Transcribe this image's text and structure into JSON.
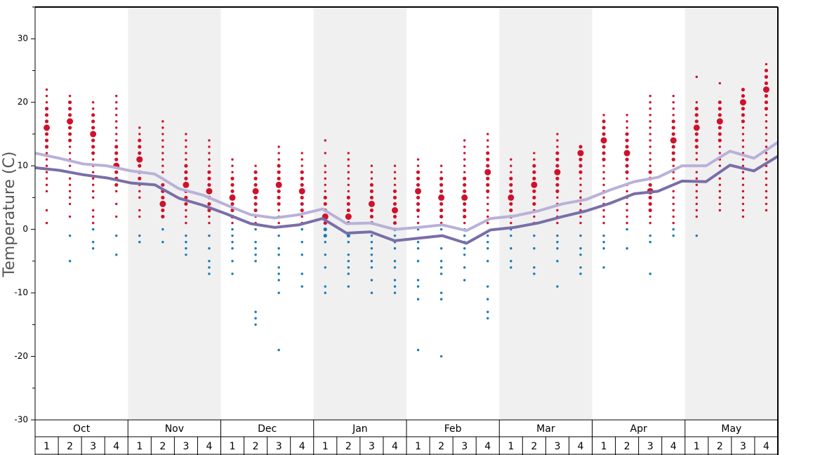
{
  "chart_data": {
    "type": "dot-distribution",
    "y_label": "Temperature (C)",
    "ylim": [
      -30,
      35
    ],
    "yticks": [
      -30,
      -20,
      -10,
      0,
      10,
      20,
      30
    ],
    "yminorticks": [
      -25,
      -15,
      -5,
      5,
      15,
      25,
      35
    ],
    "months": [
      "Oct",
      "Nov",
      "Dec",
      "Jan",
      "Feb",
      "Mar",
      "Apr",
      "May"
    ],
    "weeks": [
      1,
      2,
      3,
      4
    ],
    "shade_color": "#f0f0f0",
    "warm_color": "#d0112b",
    "cold_color": "#1479b8",
    "lines": [
      {
        "color": "#b9b1d8",
        "values": [
          12.0,
          11.2,
          10.3,
          10.0,
          9.2,
          8.7,
          6.4,
          5.4,
          3.8,
          2.3,
          1.8,
          2.3,
          3.2,
          0.9,
          1.0,
          0.0,
          0.3,
          0.7,
          -0.2,
          1.7,
          2.1,
          2.9,
          4.0,
          4.7,
          6.2,
          7.5,
          8.2,
          10.0,
          10.0,
          12.3,
          11.2,
          13.7
        ]
      },
      {
        "color": "#7a6ea8",
        "values": [
          9.7,
          9.3,
          8.6,
          8.1,
          7.3,
          7.0,
          4.9,
          3.8,
          2.4,
          0.9,
          0.3,
          0.7,
          1.7,
          -0.6,
          -0.4,
          -1.8,
          -1.4,
          -1.0,
          -2.2,
          -0.1,
          0.3,
          1.0,
          2.0,
          2.9,
          4.1,
          5.6,
          6.0,
          7.6,
          7.5,
          10.1,
          9.2,
          11.5
        ]
      }
    ],
    "peak": [
      16,
      17,
      15,
      10,
      11,
      4,
      7,
      6,
      5,
      6,
      7,
      6,
      2,
      2,
      4,
      3,
      6,
      5,
      5,
      9,
      5,
      7,
      9,
      12,
      14,
      12,
      6,
      14,
      16,
      17,
      20,
      22
    ],
    "warm": [
      [
        1,
        3,
        6,
        7,
        8,
        9,
        10,
        11,
        12,
        13,
        14,
        15,
        17,
        18,
        19,
        20,
        21,
        22
      ],
      [
        2,
        4,
        5,
        6,
        7,
        8,
        9,
        10,
        11,
        12,
        13,
        14,
        15,
        16,
        18,
        19,
        20,
        21
      ],
      [
        1,
        2,
        3,
        5,
        6,
        7,
        8,
        9,
        10,
        11,
        12,
        13,
        14,
        16,
        17,
        18,
        19,
        20
      ],
      [
        2,
        4,
        6,
        7,
        8,
        9,
        11,
        12,
        13,
        14,
        15,
        16,
        17,
        18,
        19,
        20,
        21
      ],
      [
        2,
        3,
        5,
        6,
        7,
        8,
        9,
        10,
        12,
        13,
        14,
        15,
        16
      ],
      [
        2,
        3,
        5,
        6,
        7,
        8,
        9,
        10,
        11,
        12,
        13,
        14,
        15,
        16,
        17
      ],
      [
        1,
        2,
        3,
        4,
        5,
        6,
        8,
        9,
        10,
        11,
        12,
        13,
        14,
        15
      ],
      [
        1,
        2,
        3,
        4,
        5,
        7,
        8,
        9,
        10,
        11,
        12,
        13,
        14
      ],
      [
        1,
        2,
        3,
        4,
        6,
        7,
        8,
        9,
        10,
        11
      ],
      [
        1,
        2,
        3,
        4,
        5,
        7,
        8,
        9,
        10
      ],
      [
        1,
        2,
        3,
        4,
        5,
        6,
        8,
        9,
        10,
        11,
        12,
        13
      ],
      [
        1,
        2,
        3,
        4,
        5,
        7,
        8,
        9,
        10,
        11,
        12
      ],
      [
        1,
        3,
        4,
        5,
        6,
        7,
        8,
        9,
        10,
        12,
        14
      ],
      [
        1,
        3,
        4,
        5,
        6,
        7,
        8,
        9,
        10,
        11,
        12
      ],
      [
        1,
        2,
        3,
        5,
        6,
        7,
        8,
        9,
        10
      ],
      [
        1,
        2,
        4,
        5,
        6,
        7,
        8,
        9,
        10
      ],
      [
        1,
        2,
        3,
        4,
        5,
        7,
        8,
        9,
        10,
        11
      ],
      [
        1,
        2,
        3,
        4,
        6,
        7,
        8,
        9,
        10
      ],
      [
        1,
        2,
        3,
        4,
        6,
        7,
        8,
        9,
        10,
        11,
        12,
        13,
        14
      ],
      [
        1,
        2,
        3,
        4,
        5,
        6,
        7,
        8,
        10,
        11,
        12,
        13,
        14,
        15
      ],
      [
        1,
        2,
        3,
        4,
        6,
        7,
        8,
        9,
        10,
        11
      ],
      [
        1,
        2,
        3,
        4,
        5,
        6,
        8,
        9,
        10,
        11,
        12
      ],
      [
        1,
        2,
        3,
        4,
        5,
        6,
        7,
        8,
        10,
        11,
        12,
        13,
        14,
        15
      ],
      [
        1,
        2,
        3,
        4,
        5,
        6,
        7,
        8,
        9,
        10,
        11,
        13
      ],
      [
        1,
        2,
        3,
        4,
        5,
        6,
        7,
        8,
        9,
        10,
        11,
        12,
        13,
        15,
        16,
        17,
        18
      ],
      [
        1,
        2,
        3,
        4,
        5,
        6,
        7,
        8,
        9,
        10,
        11,
        13,
        14,
        15,
        16,
        17,
        18
      ],
      [
        1,
        2,
        3,
        4,
        5,
        7,
        8,
        9,
        10,
        11,
        12,
        13,
        14,
        15,
        16,
        17,
        18,
        19,
        20,
        21
      ],
      [
        1,
        2,
        3,
        4,
        5,
        6,
        7,
        8,
        9,
        10,
        11,
        12,
        13,
        15,
        16,
        17,
        18,
        19,
        20,
        21
      ],
      [
        2,
        3,
        4,
        5,
        6,
        7,
        8,
        9,
        10,
        11,
        12,
        13,
        14,
        15,
        17,
        18,
        19,
        20,
        24
      ],
      [
        3,
        4,
        5,
        6,
        7,
        8,
        9,
        10,
        11,
        12,
        13,
        14,
        15,
        16,
        18,
        19,
        20,
        23
      ],
      [
        2,
        3,
        4,
        5,
        6,
        7,
        8,
        9,
        10,
        11,
        12,
        13,
        14,
        15,
        16,
        17,
        18,
        19,
        21,
        22
      ],
      [
        3,
        4,
        5,
        6,
        7,
        8,
        9,
        10,
        11,
        12,
        13,
        14,
        15,
        16,
        17,
        18,
        19,
        20,
        21,
        23,
        24,
        25,
        26
      ]
    ],
    "cold": [
      [],
      [
        -1,
        -5
      ],
      [
        0,
        -2,
        -3
      ],
      [
        -1,
        -4
      ],
      [
        -1,
        -2
      ],
      [
        0,
        -2
      ],
      [
        -1,
        -2,
        -3,
        -4
      ],
      [
        -1,
        -3,
        -5,
        -6,
        -7
      ],
      [
        0,
        -1,
        -2,
        -3,
        -5,
        -7
      ],
      [
        0,
        -2,
        -3,
        -4,
        -5,
        -13,
        -14,
        -15
      ],
      [
        -1,
        -3,
        -4,
        -6,
        -7,
        -8,
        -10,
        -19
      ],
      [
        0,
        -2,
        -4,
        -7,
        -9
      ],
      [
        0,
        -1,
        -2,
        -4,
        -6,
        -9,
        -10
      ],
      [
        -1,
        -2,
        -4,
        -5,
        -6,
        -7,
        -9
      ],
      [
        -1,
        -2,
        -3,
        -4,
        -5,
        -6,
        -8,
        -10
      ],
      [
        0,
        -1,
        -2,
        -3,
        -5,
        -6,
        -8,
        -9,
        -10
      ],
      [
        0,
        -2,
        -3,
        -5,
        -8,
        -9,
        -11,
        -19
      ],
      [
        0,
        -3,
        -5,
        -6,
        -7,
        -10,
        -11,
        -20
      ],
      [
        0,
        -1,
        -2,
        -3,
        -4,
        -6,
        -8
      ],
      [
        -1,
        -2,
        -3,
        -5,
        -9,
        -11,
        -13,
        -14
      ],
      [
        0,
        -1,
        -3,
        -5,
        -6
      ],
      [
        -1,
        -3,
        -6,
        -7
      ],
      [
        -1,
        -2,
        -3,
        -5,
        -9
      ],
      [
        -1,
        -3,
        -4,
        -6,
        -7
      ],
      [
        -1,
        -2,
        -3,
        -6
      ],
      [
        0,
        -3
      ],
      [
        -1,
        -2,
        -7
      ],
      [
        0,
        -1
      ],
      [
        -1
      ],
      [],
      [],
      []
    ]
  }
}
